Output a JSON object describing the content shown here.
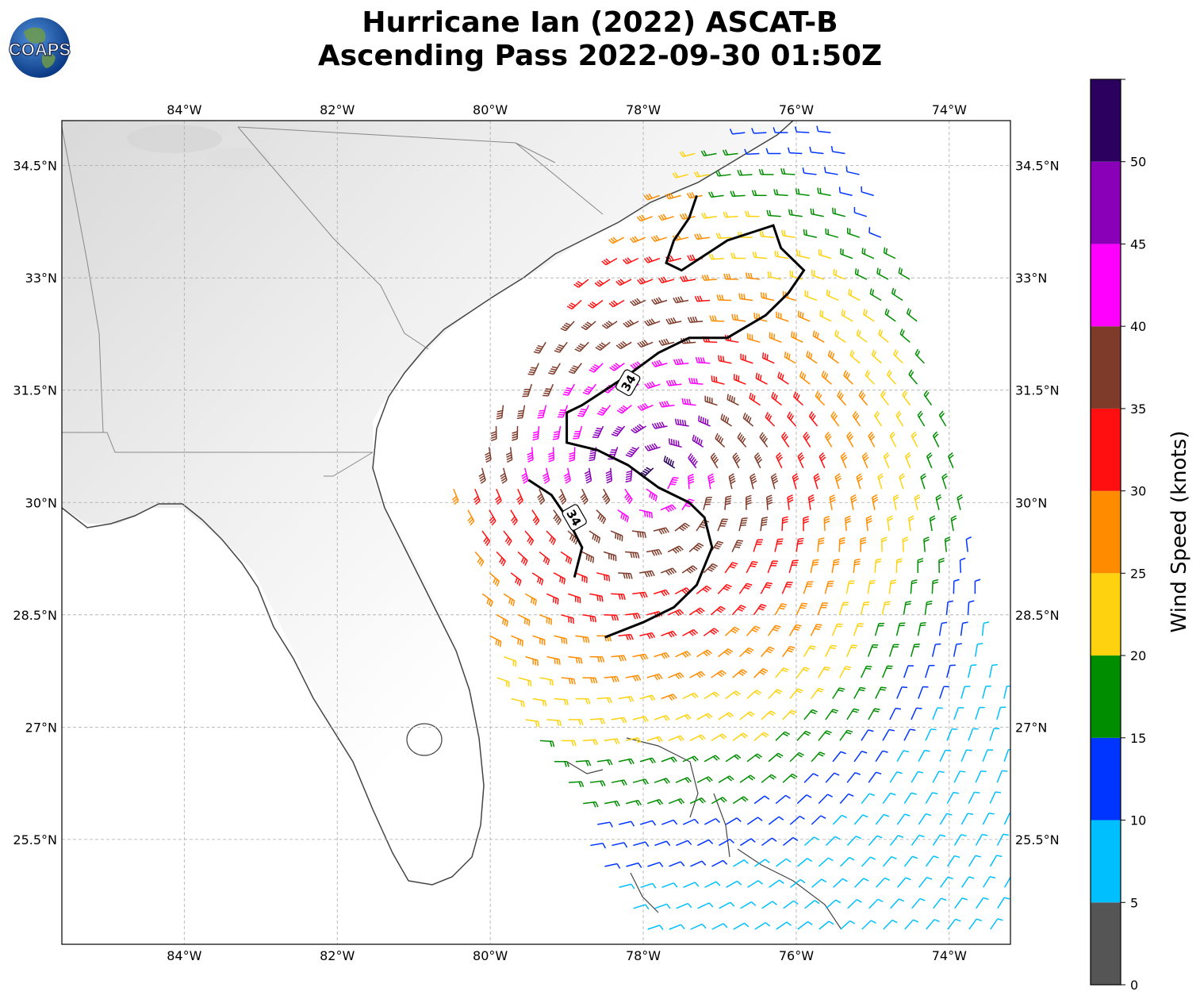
{
  "title": {
    "line1": "Hurricane Ian (2022) ASCAT-B",
    "line2": "Ascending Pass 2022-09-30 01:50Z"
  },
  "logo": {
    "text": "COAPS",
    "icon": "globe-logo-icon"
  },
  "chart_data": {
    "type": "map-wind-barbs",
    "extent": {
      "lon": [
        -85.6,
        -73.2
      ],
      "lat": [
        24.1,
        35.1
      ]
    },
    "lon_ticks": [
      -84,
      -82,
      -80,
      -78,
      -76,
      -74
    ],
    "lon_labels": [
      "84°W",
      "82°W",
      "80°W",
      "78°W",
      "76°W",
      "74°W"
    ],
    "lat_ticks": [
      34.5,
      33,
      31.5,
      30,
      28.5,
      27,
      25.5
    ],
    "lat_labels": [
      "34.5°N",
      "33°N",
      "31.5°N",
      "30°N",
      "28.5°N",
      "27°N",
      "25.5°N"
    ],
    "grid": true,
    "contour": {
      "level": "34",
      "paths": [
        [
          [
            -77.3,
            34.1
          ],
          [
            -77.4,
            33.8
          ],
          [
            -77.6,
            33.5
          ],
          [
            -77.7,
            33.2
          ],
          [
            -77.5,
            33.1
          ],
          [
            -77.2,
            33.3
          ],
          [
            -76.9,
            33.5
          ],
          [
            -76.6,
            33.6
          ],
          [
            -76.3,
            33.7
          ],
          [
            -76.2,
            33.4
          ],
          [
            -75.9,
            33.1
          ],
          [
            -76.1,
            32.8
          ],
          [
            -76.4,
            32.5
          ],
          [
            -76.9,
            32.2
          ],
          [
            -77.4,
            32.2
          ],
          [
            -77.8,
            32.0
          ],
          [
            -78.2,
            31.7
          ],
          [
            -78.5,
            31.5
          ],
          [
            -78.8,
            31.3
          ],
          [
            -79.0,
            31.2
          ],
          [
            -79.0,
            30.8
          ],
          [
            -78.6,
            30.7
          ],
          [
            -78.2,
            30.5
          ],
          [
            -77.8,
            30.2
          ],
          [
            -77.4,
            30.0
          ],
          [
            -77.2,
            29.8
          ],
          [
            -77.1,
            29.4
          ],
          [
            -77.3,
            28.9
          ],
          [
            -77.6,
            28.6
          ],
          [
            -78.0,
            28.4
          ],
          [
            -78.5,
            28.2
          ]
        ],
        [
          [
            -79.5,
            30.3
          ],
          [
            -79.2,
            30.1
          ],
          [
            -79.0,
            29.8
          ],
          [
            -78.8,
            29.4
          ],
          [
            -78.9,
            29.0
          ]
        ]
      ],
      "labels": [
        {
          "text": "34",
          "lon": -78.2,
          "lat": 31.6,
          "angle": -60
        },
        {
          "text": "34",
          "lon": -78.9,
          "lat": 29.8,
          "angle": 60
        }
      ]
    },
    "swath": {
      "left_edge": [
        [
          -76.5,
          35.1
        ],
        [
          -77.5,
          34.6
        ],
        [
          -79.5,
          32.0
        ],
        [
          -80.5,
          30.2
        ],
        [
          -80.0,
          27.8
        ],
        [
          -78.0,
          24.1
        ]
      ],
      "right_edge": [
        [
          -75.5,
          35.1
        ],
        [
          -74.5,
          33.2
        ],
        [
          -73.2,
          27.0
        ],
        [
          -73.2,
          24.1
        ]
      ]
    },
    "colorbar": {
      "label": "Wind Speed (knots)",
      "ticks": [
        0,
        5,
        10,
        15,
        20,
        25,
        30,
        35,
        40,
        45,
        50
      ],
      "bins": [
        {
          "min": 0,
          "max": 5,
          "color": "#555555"
        },
        {
          "min": 5,
          "max": 10,
          "color": "#00bfff"
        },
        {
          "min": 10,
          "max": 15,
          "color": "#0035ff"
        },
        {
          "min": 15,
          "max": 20,
          "color": "#008e00"
        },
        {
          "min": 20,
          "max": 25,
          "color": "#ffd20f"
        },
        {
          "min": 25,
          "max": 30,
          "color": "#ff8c00"
        },
        {
          "min": 30,
          "max": 35,
          "color": "#ff0f0f"
        },
        {
          "min": 35,
          "max": 40,
          "color": "#7f3b2a"
        },
        {
          "min": 40,
          "max": 45,
          "color": "#ff00ff"
        },
        {
          "min": 45,
          "max": 50,
          "color": "#8a00b8"
        },
        {
          "min": 50,
          "max": 55,
          "color": "#2b005e"
        }
      ]
    }
  }
}
